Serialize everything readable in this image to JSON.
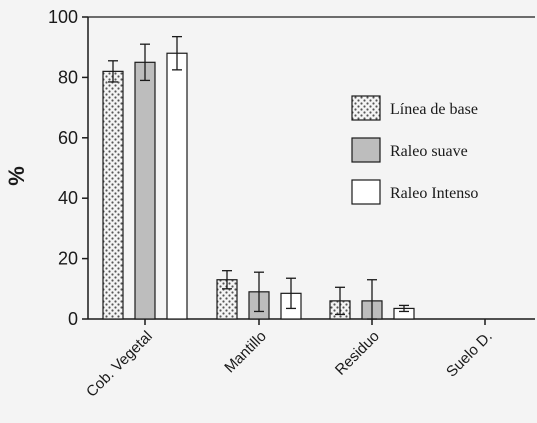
{
  "chart_data": {
    "type": "bar",
    "ylabel": "%",
    "ylim": [
      0,
      100
    ],
    "yticks": [
      "0",
      "20",
      "40",
      "60",
      "80",
      "100"
    ],
    "categories": [
      "Cob. Vegetal",
      "Mantillo",
      "Residuo",
      "Suelo D."
    ],
    "series": [
      {
        "name": "Línea de base",
        "fill": "pattern",
        "values": [
          82,
          13,
          6,
          0
        ],
        "errors": [
          3.5,
          3,
          4.5,
          0
        ]
      },
      {
        "name": "Raleo suave",
        "fill": "#bdbdbd",
        "values": [
          85,
          9,
          6,
          0
        ],
        "errors": [
          6,
          6.5,
          7,
          0
        ]
      },
      {
        "name": "Raleo Intenso",
        "fill": "#ffffff",
        "values": [
          88,
          8.5,
          3.5,
          0
        ],
        "errors": [
          5.5,
          5,
          1,
          0
        ]
      }
    ],
    "legend_position": "right",
    "grid": false
  }
}
